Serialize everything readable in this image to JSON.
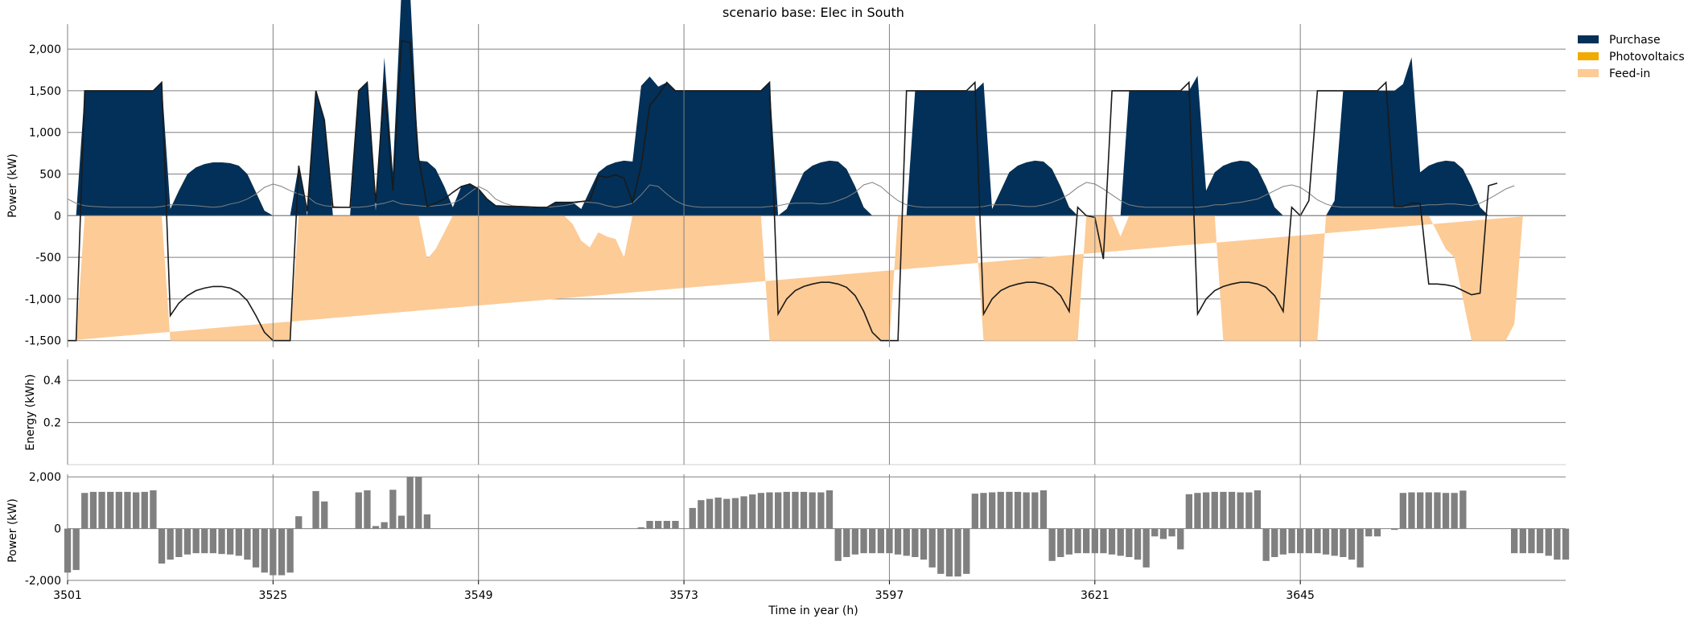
{
  "chart_data": [
    {
      "type": "area",
      "title": "scenario base: Elec in South",
      "ylabel": "Power (kW)",
      "ylim": [
        -1580,
        2300
      ],
      "yticks": [
        -1500,
        -1000,
        -500,
        0,
        500,
        1000,
        1500,
        2000
      ],
      "ytick_labels": [
        "-1,500",
        "-1,000",
        "-500",
        "0",
        "500",
        "1,000",
        "1,500",
        "2,000"
      ],
      "grid": true,
      "legend": {
        "position": "top-right",
        "entries": [
          "Purchase",
          "Photovoltaics",
          "Feed-in"
        ]
      },
      "series": [
        {
          "name": "Purchase",
          "color": "#023058",
          "values": [
            0,
            0,
            1500,
            1500,
            1500,
            1500,
            1500,
            1500,
            1500,
            1500,
            1500,
            1600,
            0,
            0,
            0,
            0,
            0,
            0,
            0,
            0,
            0,
            0,
            0,
            0,
            0,
            0,
            0,
            600,
            0,
            1500,
            1150,
            0,
            0,
            0,
            1500,
            1600,
            0,
            1600,
            0,
            2100,
            2080,
            0,
            0,
            0,
            0,
            0,
            350,
            380,
            320,
            200,
            120,
            115,
            110,
            110,
            105,
            100,
            100,
            160,
            160,
            160,
            0,
            0,
            0,
            0,
            0,
            0,
            0,
            1000,
            1320,
            1450,
            1600,
            1500,
            1500,
            1500,
            1500,
            1500,
            1500,
            1500,
            1500,
            1500,
            1500,
            1500,
            1600,
            0,
            0,
            0,
            0,
            0,
            0,
            0,
            0,
            0,
            0,
            0,
            0,
            0,
            0,
            0,
            0,
            1500,
            1500,
            1500,
            1500,
            1500,
            1500,
            1500,
            1500,
            1600,
            0,
            0,
            0,
            0,
            0,
            0,
            0,
            0,
            0,
            0,
            0,
            0,
            0,
            0,
            0,
            0,
            1500,
            1500,
            1500,
            1500,
            1500,
            1500,
            1500,
            1500,
            1600,
            0,
            0,
            0,
            0,
            0,
            0,
            0,
            0,
            0,
            0,
            0,
            0,
            0,
            0,
            0,
            180,
            1500,
            1500,
            1500,
            1500,
            1500,
            1500,
            1500,
            1500,
            1600,
            0,
            0,
            0,
            0,
            0,
            0,
            0,
            0,
            0,
            0,
            0,
            0,
            0,
            360,
            390
          ]
        },
        {
          "name": "Photovoltaics",
          "color": "#f0aa00",
          "values": [
            0,
            0,
            0,
            0,
            0,
            0,
            0,
            0,
            0,
            0,
            0,
            0,
            80,
            300,
            500,
            580,
            620,
            640,
            640,
            630,
            600,
            500,
            280,
            60,
            0,
            0,
            0,
            0,
            0,
            0,
            0,
            0,
            0,
            0,
            0,
            0,
            60,
            300,
            520,
            600,
            640,
            660,
            650,
            560,
            350,
            100,
            0,
            0,
            0,
            0,
            0,
            0,
            0,
            0,
            0,
            0,
            0,
            0,
            0,
            0,
            80,
            300,
            520,
            600,
            640,
            660,
            650,
            560,
            350,
            100,
            0,
            0,
            0,
            0,
            0,
            0,
            0,
            0,
            0,
            0,
            0,
            0,
            0,
            0,
            80,
            300,
            520,
            600,
            640,
            660,
            650,
            560,
            350,
            100,
            0,
            0,
            0,
            0,
            0,
            0,
            0,
            0,
            0,
            0,
            0,
            0,
            0,
            0,
            80,
            300,
            520,
            600,
            640,
            660,
            650,
            560,
            350,
            100,
            0,
            0,
            0,
            0,
            0,
            0,
            0,
            0,
            0,
            0,
            0,
            0,
            0,
            0,
            80,
            300,
            520,
            600,
            640,
            660,
            650,
            560,
            350,
            100,
            0,
            0,
            0,
            0,
            0,
            0,
            0,
            0,
            0,
            0,
            0,
            0,
            0,
            0,
            80,
            300,
            520,
            600,
            640,
            660,
            650,
            560,
            350,
            100,
            0,
            0
          ]
        },
        {
          "name": "Feed-in",
          "color": "#fdcb96",
          "values": [
            -1500,
            -1500,
            0,
            0,
            0,
            0,
            0,
            0,
            0,
            0,
            0,
            0,
            -1500,
            -1500,
            -1500,
            -1500,
            -1500,
            -1500,
            -1500,
            -1500,
            -1500,
            -1500,
            -1500,
            -1500,
            -1500,
            -1500,
            -1500,
            0,
            0,
            0,
            0,
            0,
            0,
            0,
            0,
            0,
            0,
            0,
            0,
            0,
            0,
            0,
            -520,
            -400,
            -200,
            0,
            0,
            0,
            0,
            0,
            0,
            0,
            0,
            0,
            0,
            0,
            0,
            0,
            0,
            -100,
            -300,
            -380,
            -200,
            -250,
            -280,
            -500,
            0,
            0,
            0,
            0,
            0,
            0,
            0,
            0,
            0,
            0,
            0,
            0,
            0,
            0,
            0,
            0,
            -1500,
            -1500,
            -1500,
            -1500,
            -1500,
            -1500,
            -1500,
            -1500,
            -1500,
            -1500,
            -1500,
            -1500,
            -1500,
            -1500,
            -1500,
            0,
            0,
            0,
            0,
            0,
            0,
            0,
            0,
            0,
            0,
            -1500,
            -1500,
            -1500,
            -1500,
            -1500,
            -1500,
            -1500,
            -1500,
            -1500,
            -1500,
            -1500,
            -1500,
            0,
            0,
            0,
            0,
            -250,
            0,
            0,
            0,
            0,
            0,
            0,
            0,
            0,
            0,
            0,
            0,
            -1500,
            -1500,
            -1500,
            -1500,
            -1500,
            -1500,
            -1500,
            -1500,
            -1500,
            -1500,
            -1500,
            -1500,
            0,
            0,
            0,
            0,
            0,
            0,
            0,
            0,
            0,
            0,
            0,
            0,
            0,
            -200,
            -400,
            -500,
            -1000,
            -1500,
            -1500,
            -1500,
            -1500,
            -1500,
            -1300,
            0,
            0
          ]
        }
      ],
      "lines": [
        {
          "role": "demand",
          "color": "#808080",
          "values": [
            200,
            150,
            120,
            110,
            105,
            100,
            100,
            100,
            100,
            100,
            100,
            110,
            130,
            130,
            125,
            120,
            110,
            100,
            110,
            140,
            160,
            200,
            260,
            340,
            380,
            350,
            300,
            260,
            230,
            150,
            120,
            110,
            100,
            100,
            100,
            110,
            130,
            150,
            180,
            140,
            130,
            120,
            110,
            120,
            130,
            150,
            200,
            280,
            350,
            300,
            200,
            150,
            120,
            110,
            100,
            100,
            100,
            110,
            120,
            140,
            170,
            160,
            150,
            120,
            100,
            120,
            150,
            250,
            370,
            350,
            260,
            180,
            130,
            110,
            100,
            100,
            100,
            100,
            100,
            100,
            100,
            100,
            110,
            120,
            140,
            150,
            150,
            150,
            140,
            150,
            180,
            220,
            280,
            370,
            400,
            350,
            260,
            180,
            130,
            110,
            100,
            100,
            100,
            100,
            100,
            100,
            100,
            110,
            130,
            130,
            130,
            120,
            110,
            110,
            130,
            160,
            200,
            260,
            340,
            400,
            380,
            320,
            250,
            180,
            130,
            110,
            100,
            100,
            100,
            100,
            100,
            100,
            100,
            110,
            130,
            130,
            150,
            160,
            180,
            200,
            250,
            300,
            350,
            370,
            340,
            270,
            190,
            140,
            110,
            100,
            100,
            100,
            100,
            100,
            100,
            100,
            100,
            110,
            120,
            130,
            130,
            140,
            140,
            130,
            120,
            150,
            200,
            260,
            320,
            360
          ]
        },
        {
          "role": "net",
          "color": "#1a1a1a",
          "values": [
            -1500,
            -1500,
            1500,
            1500,
            1500,
            1500,
            1500,
            1500,
            1500,
            1500,
            1500,
            1600,
            -1200,
            -1050,
            -960,
            -900,
            -870,
            -850,
            -850,
            -870,
            -920,
            -1020,
            -1200,
            -1400,
            -1500,
            -1500,
            -1500,
            600,
            50,
            1500,
            1150,
            100,
            100,
            100,
            1500,
            1600,
            150,
            1600,
            300,
            2100,
            2080,
            700,
            110,
            150,
            200,
            280,
            350,
            380,
            320,
            200,
            120,
            115,
            110,
            110,
            105,
            100,
            100,
            160,
            160,
            160,
            170,
            180,
            480,
            460,
            490,
            450,
            160,
            600,
            1320,
            1450,
            1600,
            1500,
            1500,
            1500,
            1500,
            1500,
            1500,
            1500,
            1500,
            1500,
            1500,
            1500,
            1600,
            -1180,
            -1000,
            -900,
            -850,
            -820,
            -800,
            -800,
            -820,
            -860,
            -960,
            -1150,
            -1400,
            -1500,
            -1500,
            -1500,
            1500,
            1500,
            1500,
            1500,
            1500,
            1500,
            1500,
            1500,
            1600,
            -1180,
            -1000,
            -900,
            -850,
            -820,
            -800,
            -800,
            -820,
            -860,
            -960,
            -1150,
            100,
            0,
            -20,
            -520,
            1500,
            1500,
            1500,
            1500,
            1500,
            1500,
            1500,
            1500,
            1500,
            1600,
            -1180,
            -1000,
            -900,
            -850,
            -820,
            -800,
            -800,
            -820,
            -860,
            -960,
            -1150,
            100,
            0,
            180,
            1500,
            1500,
            1500,
            1500,
            1500,
            1500,
            1500,
            1500,
            1600,
            110,
            110,
            150,
            150,
            -820,
            -820,
            -830,
            -850,
            -900,
            -950,
            -930,
            360,
            390
          ]
        }
      ],
      "x_start": 3501
    },
    {
      "type": "line",
      "ylabel": "Energy (kWh)",
      "ylim": [
        0,
        0.5
      ],
      "yticks": [
        0.2,
        0.4
      ],
      "ytick_labels": [
        "0.2",
        "0.4"
      ],
      "grid": true,
      "values": []
    },
    {
      "type": "bar",
      "ylabel": "Power (kW)",
      "ylim": [
        -2000,
        2100
      ],
      "yticks": [
        -2000,
        0,
        2000
      ],
      "ytick_labels": [
        "-2,000",
        "0",
        "2,000"
      ],
      "xlabel": "Time in year (h)",
      "xticks": [
        3501,
        3525,
        3549,
        3573,
        3597,
        3621,
        3645
      ],
      "xtick_labels": [
        "3501",
        "3525",
        "3549",
        "3573",
        "3597",
        "3621",
        "3645"
      ],
      "grid": true,
      "color": "#808080",
      "x_start": 3501,
      "values": [
        -1700,
        -1600,
        1380,
        1420,
        1420,
        1420,
        1420,
        1420,
        1400,
        1420,
        1480,
        -1350,
        -1200,
        -1100,
        -1000,
        -950,
        -950,
        -950,
        -980,
        -1000,
        -1050,
        -1200,
        -1500,
        -1700,
        -1800,
        -1800,
        -1700,
        480,
        0,
        1450,
        1050,
        0,
        0,
        0,
        1400,
        1480,
        100,
        250,
        1500,
        500,
        2000,
        2000,
        550,
        0,
        0,
        0,
        0,
        0,
        0,
        0,
        0,
        0,
        0,
        0,
        0,
        0,
        0,
        0,
        0,
        0,
        0,
        0,
        0,
        0,
        0,
        0,
        0,
        50,
        300,
        300,
        300,
        300,
        0,
        800,
        1100,
        1150,
        1200,
        1150,
        1180,
        1250,
        1320,
        1380,
        1400,
        1400,
        1420,
        1420,
        1420,
        1400,
        1400,
        1480,
        -1250,
        -1100,
        -1000,
        -950,
        -950,
        -950,
        -950,
        -1000,
        -1050,
        -1100,
        -1200,
        -1500,
        -1750,
        -1850,
        -1850,
        -1750,
        1350,
        1380,
        1400,
        1420,
        1420,
        1420,
        1400,
        1400,
        1480,
        -1250,
        -1100,
        -1000,
        -950,
        -950,
        -950,
        -950,
        -1000,
        -1050,
        -1100,
        -1200,
        -1500,
        -300,
        -400,
        -300,
        -800,
        1330,
        1380,
        1400,
        1420,
        1420,
        1420,
        1400,
        1400,
        1480,
        -1250,
        -1100,
        -1000,
        -950,
        -950,
        -950,
        -950,
        -1000,
        -1050,
        -1100,
        -1200,
        -1500,
        -300,
        -300,
        0,
        -50,
        1380,
        1400,
        1400,
        1400,
        1400,
        1380,
        1380,
        1470,
        0,
        0,
        0,
        0,
        0,
        -950,
        -950,
        -950,
        -950,
        -1050,
        -1200,
        -1200,
        0,
        0
      ]
    }
  ]
}
